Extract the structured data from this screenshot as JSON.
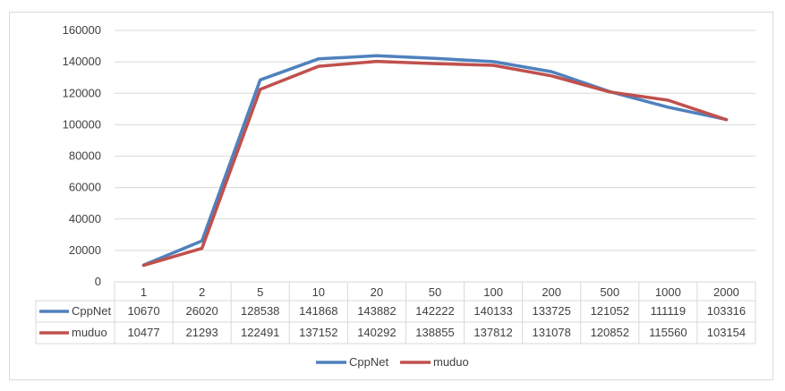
{
  "chart_data": {
    "type": "line",
    "title": "",
    "xlabel": "",
    "ylabel": "",
    "categories": [
      "1",
      "2",
      "5",
      "10",
      "20",
      "50",
      "100",
      "200",
      "500",
      "1000",
      "2000"
    ],
    "ylim": [
      0,
      160000
    ],
    "yticks": [
      "0",
      "20000",
      "40000",
      "60000",
      "80000",
      "100000",
      "120000",
      "140000",
      "160000"
    ],
    "grid": true,
    "legend_position": "bottom",
    "data_table": true,
    "series": [
      {
        "name": "CppNet",
        "color": "#4f81bd",
        "values": [
          10670,
          26020,
          128538,
          141868,
          143882,
          142222,
          140133,
          133725,
          121052,
          111119,
          103316
        ]
      },
      {
        "name": "muduo",
        "color": "#c0504d",
        "values": [
          10477,
          21293,
          122491,
          137152,
          140292,
          138855,
          137812,
          131078,
          120852,
          115560,
          103154
        ]
      }
    ]
  }
}
